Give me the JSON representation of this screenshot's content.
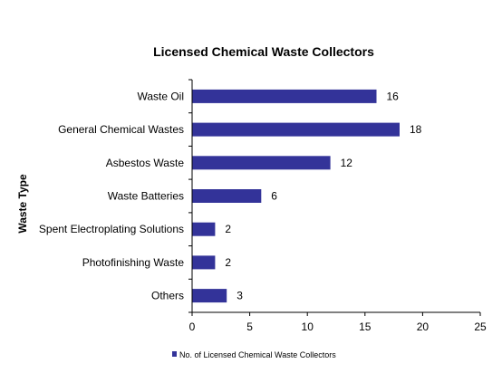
{
  "chart_data": {
    "type": "bar",
    "orientation": "horizontal",
    "title": "Licensed Chemical Waste Collectors",
    "xlabel": "",
    "ylabel": "Waste Type",
    "categories": [
      "Waste Oil",
      "General Chemical Wastes",
      "Asbestos Waste",
      "Waste Batteries",
      "Spent Electroplating Solutions",
      "Photofinishing Waste",
      "Others"
    ],
    "series": [
      {
        "name": "No. of Licensed Chemical Waste Collectors",
        "values": [
          16,
          18,
          12,
          6,
          2,
          2,
          3
        ],
        "color": "#333399"
      }
    ],
    "xlim": [
      0,
      25
    ],
    "xticks": [
      0,
      5,
      10,
      15,
      20,
      25
    ],
    "grid": false,
    "legend": "bottom",
    "data_labels": true
  }
}
